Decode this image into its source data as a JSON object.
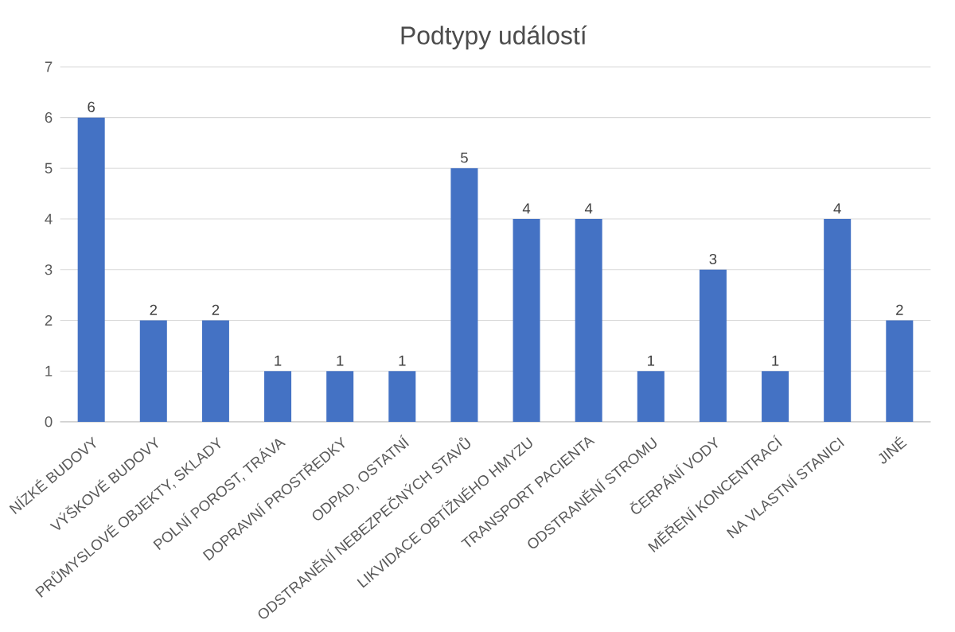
{
  "chart_data": {
    "type": "bar",
    "title": "Podtypy událostí",
    "categories": [
      "NÍZKÉ BUDOVY",
      "VÝŠKOVÉ BUDOVY",
      "PRŮMYSLOVÉ OBJEKTY, SKLADY",
      "POLNÍ POROST, TRÁVA",
      "DOPRAVNÍ PROSTŘEDKY",
      "ODPAD, OSTATNÍ",
      "ODSTRANĚNÍ NEBEZPEČNÝCH STAVŮ",
      "LIKVIDACE OBTÍŽNÉHO HMYZU",
      "TRANSPORT PACIENTA",
      "ODSTRANĚNÍ STROMU",
      "ČERPÁNÍ VODY",
      "MĚŘENÍ KONCENTRACÍ",
      "NA VLASTNÍ STANICI",
      "JINÉ"
    ],
    "values": [
      6,
      2,
      2,
      1,
      1,
      1,
      5,
      4,
      4,
      1,
      3,
      1,
      4,
      2
    ],
    "color": "#4472c4",
    "ylim": [
      0,
      7
    ],
    "yticks": [
      0,
      1,
      2,
      3,
      4,
      5,
      6,
      7
    ],
    "grid": "y",
    "data_labels": true
  }
}
